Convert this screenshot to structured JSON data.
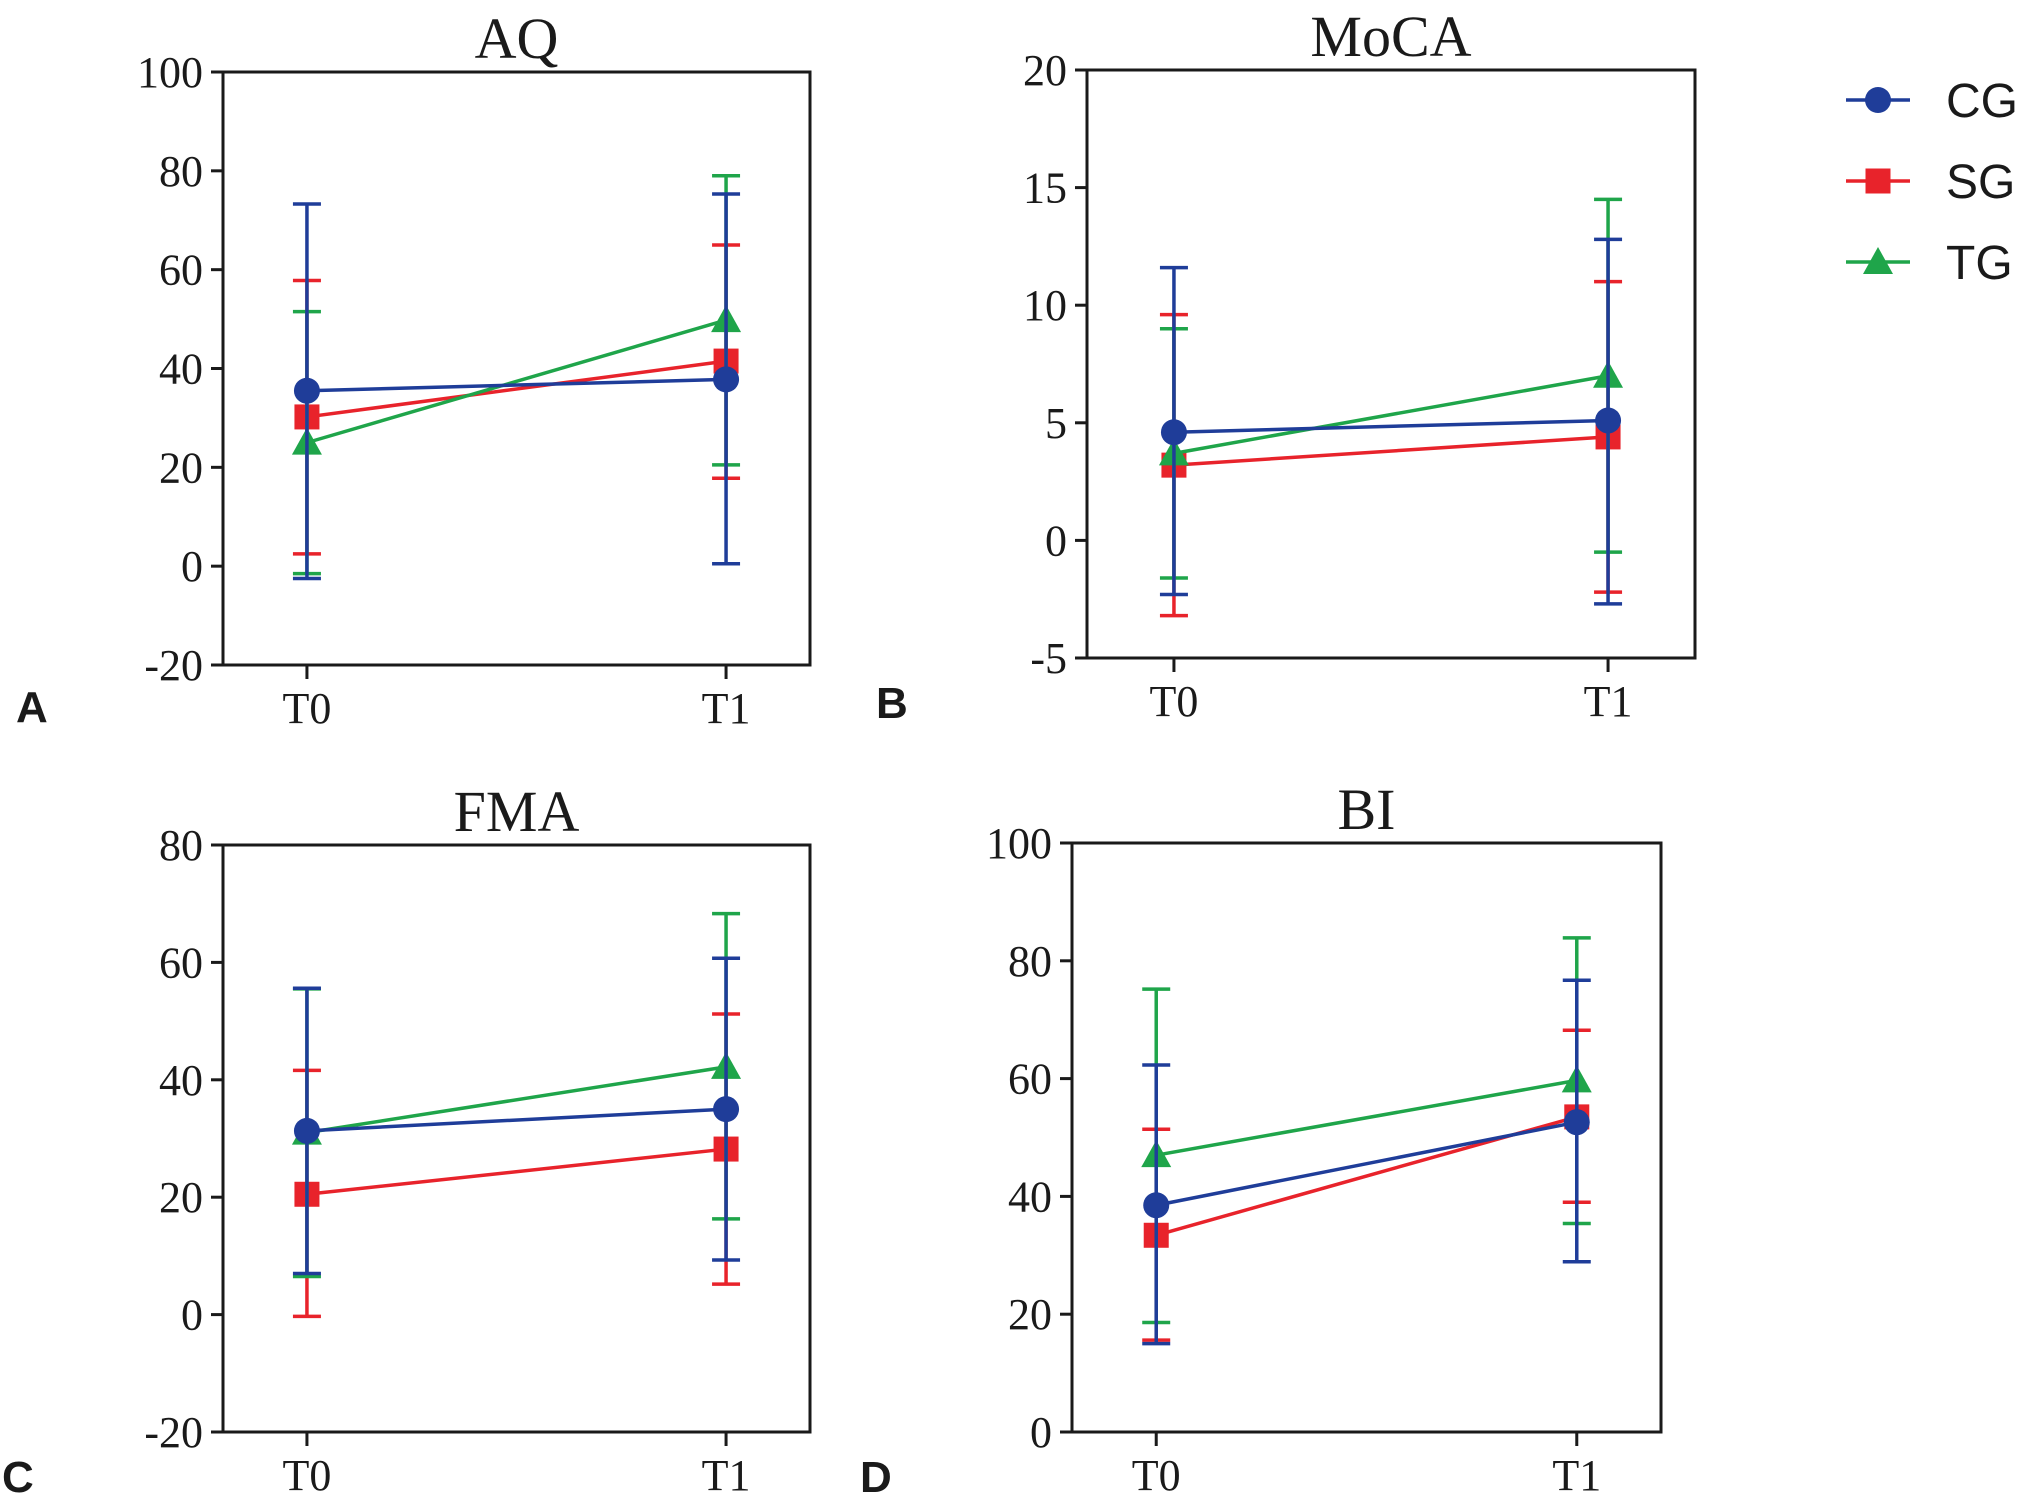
{
  "colors": {
    "CG": "#1f3d99",
    "SG": "#e8232b",
    "TG": "#1fa54a",
    "axis": "#1a1a1a"
  },
  "legend": [
    {
      "name": "CG",
      "marker": "circle"
    },
    {
      "name": "SG",
      "marker": "square"
    },
    {
      "name": "TG",
      "marker": "triangle"
    }
  ],
  "chart_data": [
    {
      "type": "line",
      "letter": "A",
      "title": "AQ",
      "categories": [
        "T0",
        "T1"
      ],
      "ylim": [
        -20,
        100
      ],
      "yticks": [
        -20,
        0,
        20,
        40,
        60,
        80,
        100
      ],
      "ytick_labels": [
        "-20",
        "0",
        "20",
        "40",
        "60",
        "80",
        "100"
      ],
      "series": [
        {
          "name": "CG",
          "values": [
            35.5,
            37.8
          ],
          "err_low": [
            -2.5,
            0.5
          ],
          "err_high": [
            73.3,
            75.3
          ]
        },
        {
          "name": "SG",
          "values": [
            30.2,
            41.5
          ],
          "err_low": [
            2.5,
            17.8
          ],
          "err_high": [
            57.8,
            65.0
          ]
        },
        {
          "name": "TG",
          "values": [
            25.0,
            49.8
          ],
          "err_low": [
            -1.5,
            20.5
          ],
          "err_high": [
            51.5,
            79.0
          ]
        }
      ]
    },
    {
      "type": "line",
      "letter": "B",
      "title": "MoCA",
      "categories": [
        "T0",
        "T1"
      ],
      "ylim": [
        -5,
        20
      ],
      "yticks": [
        -5,
        0,
        5,
        10,
        15,
        20
      ],
      "ytick_labels": [
        "-5",
        "0",
        "5",
        "10",
        "15",
        "20"
      ],
      "series": [
        {
          "name": "CG",
          "values": [
            4.6,
            5.1
          ],
          "err_low": [
            -2.3,
            -2.7
          ],
          "err_high": [
            11.6,
            12.8
          ]
        },
        {
          "name": "SG",
          "values": [
            3.2,
            4.4
          ],
          "err_low": [
            -3.2,
            -2.2
          ],
          "err_high": [
            9.6,
            11.0
          ]
        },
        {
          "name": "TG",
          "values": [
            3.7,
            7.0
          ],
          "err_low": [
            -1.6,
            -0.5
          ],
          "err_high": [
            9.0,
            14.5
          ]
        }
      ]
    },
    {
      "type": "line",
      "letter": "C",
      "title": "FMA",
      "categories": [
        "T0",
        "T1"
      ],
      "ylim": [
        -20,
        80
      ],
      "yticks": [
        -20,
        0,
        20,
        40,
        60,
        80
      ],
      "ytick_labels": [
        "-20",
        "0",
        "20",
        "40",
        "60",
        "80"
      ],
      "series": [
        {
          "name": "CG",
          "values": [
            31.3,
            35.0
          ],
          "err_low": [
            7.0,
            9.3
          ],
          "err_high": [
            55.6,
            60.7
          ]
        },
        {
          "name": "SG",
          "values": [
            20.5,
            28.2
          ],
          "err_low": [
            -0.3,
            5.2
          ],
          "err_high": [
            41.6,
            51.2
          ]
        },
        {
          "name": "TG",
          "values": [
            31.0,
            42.2
          ],
          "err_low": [
            6.5,
            16.3
          ],
          "err_high": [
            55.5,
            68.3
          ]
        }
      ]
    },
    {
      "type": "line",
      "letter": "D",
      "title": "BI",
      "categories": [
        "T0",
        "T1"
      ],
      "ylim": [
        0,
        100
      ],
      "yticks": [
        0,
        20,
        40,
        60,
        80,
        100
      ],
      "ytick_labels": [
        "0",
        "20",
        "40",
        "60",
        "80",
        "100"
      ],
      "series": [
        {
          "name": "CG",
          "values": [
            38.5,
            52.6
          ],
          "err_low": [
            15.0,
            28.9
          ],
          "err_high": [
            62.3,
            76.7
          ]
        },
        {
          "name": "SG",
          "values": [
            33.4,
            53.5
          ],
          "err_low": [
            15.6,
            39.0
          ],
          "err_high": [
            51.4,
            68.2
          ]
        },
        {
          "name": "TG",
          "values": [
            47.0,
            59.7
          ],
          "err_low": [
            18.6,
            35.4
          ],
          "err_high": [
            75.2,
            83.9
          ]
        }
      ]
    }
  ]
}
